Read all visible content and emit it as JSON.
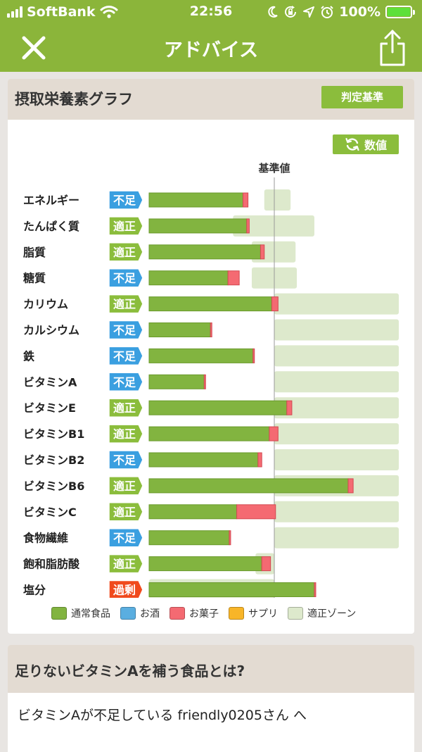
{
  "status_bar": {
    "carrier": "SoftBank",
    "time": "22:56",
    "battery_percent": "100%",
    "icons": [
      "signal-icon",
      "wifi-icon",
      "moon-icon",
      "rotation-lock-icon",
      "location-icon",
      "alarm-icon",
      "battery-icon"
    ]
  },
  "nav": {
    "title": "アドバイス",
    "left_icon": "close-icon",
    "right_icon": "share-icon"
  },
  "graph_card": {
    "title": "摂取栄養素グラフ",
    "criteria_button": "判定基準",
    "value_button": "数値",
    "value_button_icon": "refresh-icon"
  },
  "chart_data": {
    "type": "bar",
    "reference_label": "基準値",
    "status_colors": {
      "不足": "#3a9fe0",
      "適正": "#8bbd3c",
      "過剰": "#f04a1d"
    },
    "series_colors": {
      "通常食品": "#82b440",
      "お酒": "#5aaee0",
      "お菓子": "#f46a72",
      "サプリ": "#f8b528",
      "適正ゾーン": "#dde9cc"
    },
    "legend": [
      "通常食品",
      "お酒",
      "お菓子",
      "サプリ",
      "適正ゾーン"
    ],
    "nutrients": [
      {
        "name": "エネルギー",
        "status": "不足",
        "normal": 75,
        "snack": 4,
        "zone": [
          92,
          113
        ]
      },
      {
        "name": "たんぱく質",
        "status": "適正",
        "normal": 78,
        "snack": 2,
        "zone": [
          67,
          132
        ]
      },
      {
        "name": "脂質",
        "status": "適正",
        "normal": 89,
        "snack": 3,
        "zone": [
          82,
          117
        ]
      },
      {
        "name": "糖質",
        "status": "不足",
        "normal": 63,
        "snack": 9,
        "zone": [
          82,
          118
        ]
      },
      {
        "name": "カリウム",
        "status": "適正",
        "normal": 98,
        "snack": 5,
        "zone": [
          100,
          200
        ]
      },
      {
        "name": "カルシウム",
        "status": "不足",
        "normal": 49,
        "snack": 1,
        "zone": [
          100,
          200
        ]
      },
      {
        "name": "鉄",
        "status": "不足",
        "normal": 83,
        "snack": 1,
        "zone": [
          100,
          200
        ]
      },
      {
        "name": "ビタミンA",
        "status": "不足",
        "normal": 44,
        "snack": 1,
        "zone": [
          100,
          200
        ]
      },
      {
        "name": "ビタミンE",
        "status": "適正",
        "normal": 110,
        "snack": 4,
        "zone": [
          100,
          200
        ]
      },
      {
        "name": "ビタミンB1",
        "status": "適正",
        "normal": 96,
        "snack": 7,
        "zone": [
          100,
          200
        ]
      },
      {
        "name": "ビタミンB2",
        "status": "不足",
        "normal": 87,
        "snack": 3,
        "zone": [
          100,
          200
        ]
      },
      {
        "name": "ビタミンB6",
        "status": "適正",
        "normal": 159,
        "snack": 4,
        "zone": [
          100,
          200
        ]
      },
      {
        "name": "ビタミンC",
        "status": "適正",
        "normal": 70,
        "snack": 31,
        "zone": [
          100,
          200
        ]
      },
      {
        "name": "食物繊維",
        "status": "不足",
        "normal": 64,
        "snack": 1,
        "zone": [
          100,
          200
        ]
      },
      {
        "name": "飽和脂肪酸",
        "status": "適正",
        "normal": 90,
        "snack": 7,
        "zone": [
          85,
          100
        ]
      },
      {
        "name": "塩分",
        "status": "過剰",
        "normal": 132,
        "snack": 1,
        "zone": [
          0,
          100
        ]
      }
    ]
  },
  "advice_card": {
    "title": "足りないビタミンAを補う食品とは?",
    "text": "ビタミンAが不足している friendly0205さん へ"
  }
}
